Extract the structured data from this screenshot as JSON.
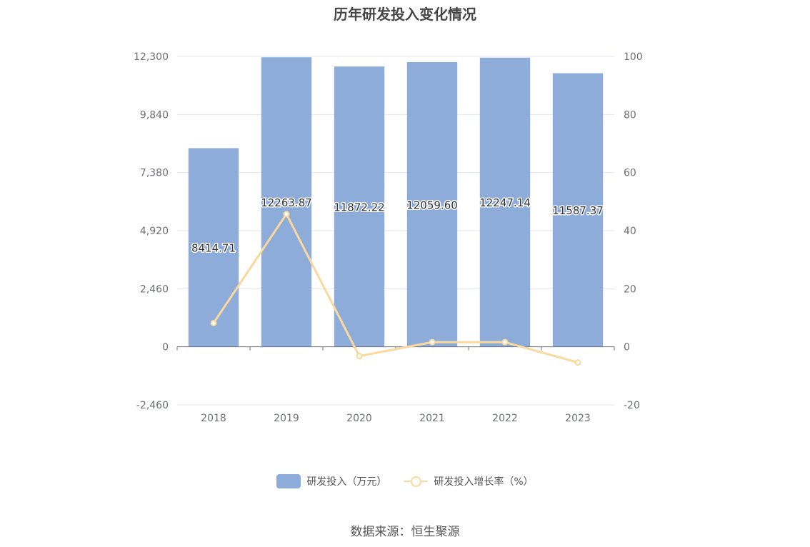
{
  "chart_data": {
    "type": "bar",
    "title": "历年研发投入变化情况",
    "categories": [
      "2018",
      "2019",
      "2020",
      "2021",
      "2022",
      "2023"
    ],
    "series": [
      {
        "name": "研发投入（万元）",
        "type": "bar",
        "axis": "left",
        "color": "#8eacda",
        "values": [
          8414.71,
          12263.87,
          11872.22,
          12059.6,
          12247.14,
          11587.37
        ],
        "labels": [
          "8414.71",
          "12263.87",
          "11872.22",
          "12059.60",
          "12247.14",
          "11587.37"
        ]
      },
      {
        "name": "研发投入增长率（%）",
        "type": "line",
        "axis": "right",
        "color": "#fbd89b",
        "values": [
          8.2,
          45.7,
          -3.2,
          1.6,
          1.6,
          -5.4
        ]
      }
    ],
    "y_left": {
      "range": [
        -2460,
        12300
      ],
      "ticks": [
        -2460,
        0,
        2460,
        4920,
        7380,
        9840,
        12300
      ],
      "tick_labels": [
        "-2,460",
        "0",
        "2,460",
        "4,920",
        "7,380",
        "9,840",
        "12,300"
      ]
    },
    "y_right": {
      "range": [
        -20,
        100
      ],
      "ticks": [
        -20,
        0,
        20,
        40,
        60,
        80,
        100
      ],
      "tick_labels": [
        "-20",
        "0",
        "20",
        "40",
        "60",
        "80",
        "100"
      ]
    },
    "grid": true,
    "legend_position": "bottom-center"
  },
  "source": "数据来源：恒生聚源"
}
